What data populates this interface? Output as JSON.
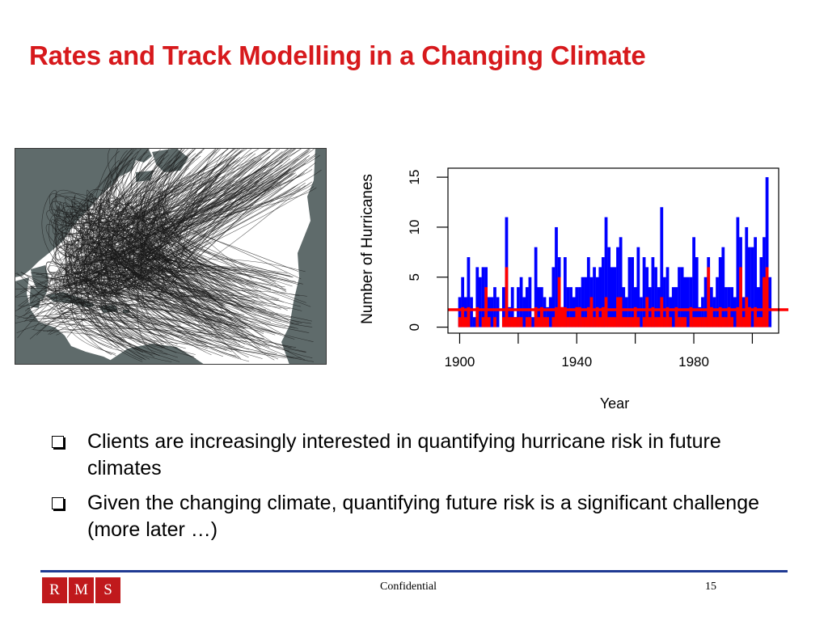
{
  "slide": {
    "title": "Rates and Track Modelling in a Changing Climate",
    "bullets": [
      "Clients are increasingly interested in quantifying hurricane risk in future climates",
      "Given the changing climate, quantifying future risk is a significant challenge (more later …)"
    ]
  },
  "colors": {
    "title": "#d7191c",
    "all_hurricanes": "#0000ff",
    "landfalling": "#ff0000",
    "mean_line": "#ff0000",
    "land": "#5f6b6b",
    "ocean": "#ffffff",
    "track": "#1a1a1a",
    "footer_rule": "#1f3a93",
    "logo_bg": "#c0191c"
  },
  "map": {
    "type": "hurricane-track-map",
    "description_icon": "north-atlantic-map"
  },
  "chart_data": {
    "type": "bar",
    "xlabel": "Year",
    "ylabel": "Number of Hurricanes",
    "xlim": [
      1896,
      2009
    ],
    "ylim": [
      0,
      15
    ],
    "xticks": [
      1900,
      1920,
      1940,
      1960,
      1980,
      2000
    ],
    "xtick_labels": [
      "1900",
      "",
      "1940",
      "",
      "1980",
      ""
    ],
    "yticks": [
      0,
      5,
      10,
      15
    ],
    "ytick_labels": [
      "0",
      "5",
      "10",
      "15"
    ],
    "grid": false,
    "legend": "none",
    "x": [
      1900,
      1901,
      1902,
      1903,
      1904,
      1905,
      1906,
      1907,
      1908,
      1909,
      1910,
      1911,
      1912,
      1913,
      1914,
      1915,
      1916,
      1917,
      1918,
      1919,
      1920,
      1921,
      1922,
      1923,
      1924,
      1925,
      1926,
      1927,
      1928,
      1929,
      1930,
      1931,
      1932,
      1933,
      1934,
      1935,
      1936,
      1937,
      1938,
      1939,
      1940,
      1941,
      1942,
      1943,
      1944,
      1945,
      1946,
      1947,
      1948,
      1949,
      1950,
      1951,
      1952,
      1953,
      1954,
      1955,
      1956,
      1957,
      1958,
      1959,
      1960,
      1961,
      1962,
      1963,
      1964,
      1965,
      1966,
      1967,
      1968,
      1969,
      1970,
      1971,
      1972,
      1973,
      1974,
      1975,
      1976,
      1977,
      1978,
      1979,
      1980,
      1981,
      1982,
      1983,
      1984,
      1985,
      1986,
      1987,
      1988,
      1989,
      1990,
      1991,
      1992,
      1993,
      1994,
      1995,
      1996,
      1997,
      1998,
      1999,
      2000,
      2001,
      2002,
      2003,
      2004,
      2005,
      2006
    ],
    "series": [
      {
        "values": [
          3,
          5,
          3,
          7,
          3,
          1,
          6,
          5,
          6,
          6,
          3,
          3,
          4,
          3,
          0,
          4,
          11,
          2,
          4,
          1,
          4,
          5,
          3,
          4,
          5,
          1,
          8,
          4,
          4,
          3,
          2,
          3,
          6,
          10,
          7,
          2,
          7,
          4,
          4,
          3,
          4,
          4,
          5,
          5,
          7,
          5,
          6,
          5,
          6,
          7,
          11,
          8,
          6,
          6,
          8,
          9,
          4,
          3,
          7,
          7,
          4,
          8,
          3,
          7,
          6,
          4,
          7,
          6,
          4,
          12,
          5,
          6,
          3,
          4,
          4,
          6,
          6,
          5,
          5,
          5,
          9,
          7,
          2,
          3,
          5,
          7,
          4,
          3,
          5,
          7,
          8,
          4,
          4,
          4,
          3,
          11,
          9,
          3,
          10,
          8,
          8,
          9,
          4,
          7,
          9,
          15,
          5
        ],
        "color_key": "all_hurricanes"
      },
      {
        "values": [
          1,
          2,
          1,
          2,
          0,
          0,
          2,
          0,
          1,
          4,
          1,
          0,
          1,
          0,
          0,
          1,
          6,
          1,
          1,
          1,
          1,
          1,
          0,
          1,
          1,
          0,
          2,
          1,
          2,
          1,
          1,
          0,
          1,
          2,
          5,
          2,
          2,
          1,
          1,
          1,
          2,
          2,
          1,
          1,
          2,
          3,
          1,
          2,
          1,
          2,
          3,
          1,
          1,
          1,
          3,
          3,
          1,
          1,
          1,
          1,
          2,
          1,
          0,
          1,
          3,
          1,
          2,
          1,
          1,
          3,
          1,
          2,
          1,
          0,
          2,
          1,
          1,
          1,
          0,
          2,
          1,
          1,
          1,
          1,
          1,
          6,
          2,
          1,
          1,
          2,
          1,
          1,
          2,
          1,
          0,
          2,
          6,
          1,
          3,
          2,
          0,
          2,
          1,
          1,
          5,
          6,
          0
        ],
        "color_key": "landfalling"
      }
    ],
    "mean_line_value": 1.75
  },
  "footer": {
    "logo_letters": [
      "R",
      "M",
      "S"
    ],
    "text": "Confidential",
    "page_number": "15"
  }
}
